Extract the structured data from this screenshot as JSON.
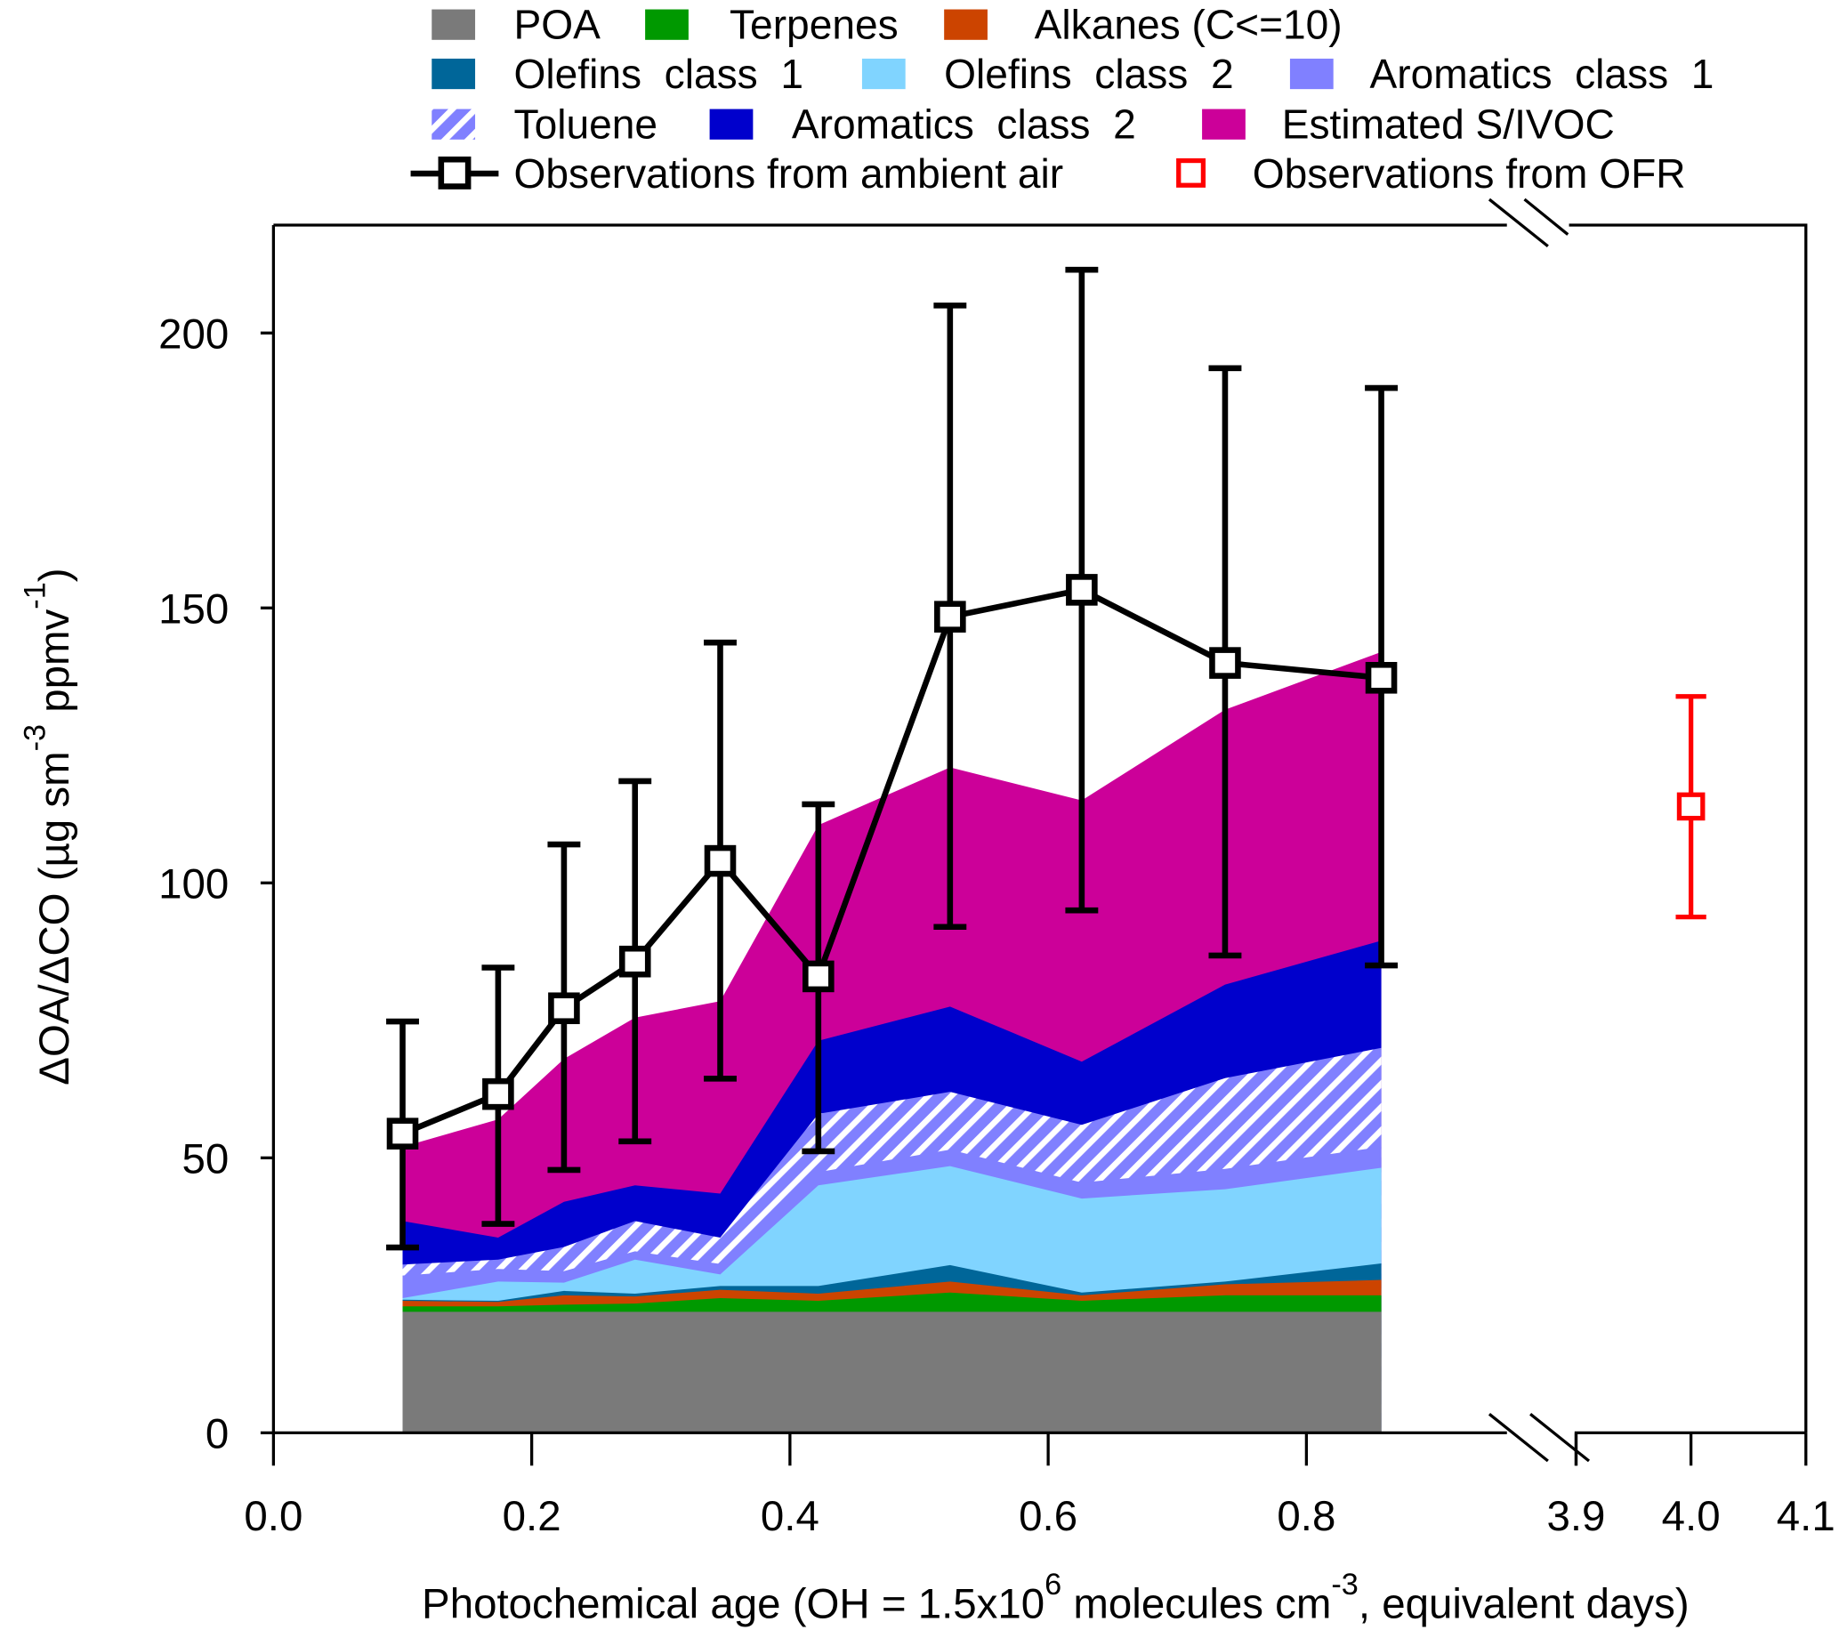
{
  "chart_data": {
    "type": "area",
    "stacked": true,
    "value_note": "series values are cumulative stack tops",
    "xlabel": {
      "pre": "Photochemical age (OH = 1.5x10",
      "sup1": "6",
      "mid": " molecules cm",
      "sup2": "-3",
      "post": ", equivalent days)"
    },
    "ylabel": {
      "pre": "ΔOA/ΔCO (µg sm",
      "sup1": "-3",
      "mid": " ppmv",
      "sup2": "-1",
      "post": ")"
    },
    "ylim": [
      0,
      220
    ],
    "xlim_left": [
      0.0,
      0.9
    ],
    "xlim_right": [
      3.9,
      4.1
    ],
    "y_ticks": [
      "0",
      "50",
      "100",
      "150",
      "200"
    ],
    "x_ticks_left": [
      "0.0",
      "0.2",
      "0.4",
      "0.6",
      "0.8"
    ],
    "x_ticks_right": [
      "3.9",
      "4.0",
      "4.1"
    ],
    "x": [
      0.1,
      0.174,
      0.225,
      0.28,
      0.346,
      0.422,
      0.524,
      0.626,
      0.737,
      0.858
    ],
    "series": [
      {
        "name": "POA",
        "color": "#7a7a7a",
        "values": [
          22,
          22,
          22,
          22,
          22,
          22,
          22,
          22,
          22,
          22
        ]
      },
      {
        "name": "Terpenes",
        "color": "#009900",
        "values": [
          23,
          23,
          23.3,
          23.5,
          24.5,
          24,
          25.5,
          24,
          25,
          25
        ]
      },
      {
        "name": "Alkanes (C<=10)",
        "color": "#cc4400",
        "values": [
          24,
          23.8,
          25,
          24.8,
          26,
          25.3,
          27.5,
          25,
          27,
          27.8
        ]
      },
      {
        "name": "Olefins  class  1",
        "color": "#006699",
        "values": [
          24.2,
          24,
          25.8,
          25.3,
          26.7,
          26.7,
          30.5,
          25.5,
          27.5,
          30.8
        ]
      },
      {
        "name": "Olefins  class  2",
        "color": "#80d4ff",
        "values": [
          24.5,
          27.5,
          27.3,
          31.5,
          28.8,
          45,
          48.5,
          42.6,
          44.3,
          48.2
        ]
      },
      {
        "name": "Aromatics  class  1",
        "color": "#8080ff",
        "values": [
          28.6,
          29.8,
          29.4,
          33,
          30.7,
          47.4,
          51.5,
          45.5,
          48,
          52
        ]
      },
      {
        "name": "Toluene",
        "color": "#8080ff",
        "hatched": true,
        "values": [
          30.6,
          31.5,
          33.8,
          38.5,
          35.5,
          58,
          62,
          56,
          64.5,
          70
        ]
      },
      {
        "name": "Aromatics  class  2",
        "color": "#0000cc",
        "values": [
          38.5,
          35.5,
          42,
          45,
          43.5,
          71.3,
          77.5,
          67.5,
          81.5,
          89.5
        ]
      },
      {
        "name": "Estimated S/IVOC",
        "color": "#cc0099",
        "values": [
          52,
          57,
          68,
          75.5,
          78.5,
          110.5,
          121,
          115,
          131.5,
          142
        ]
      }
    ],
    "observations_ambient": {
      "name": "Observations from ambient air",
      "color": "#000000",
      "y": [
        54.4,
        61.6,
        77.2,
        85.7,
        104,
        83,
        148.4,
        153.3,
        140,
        137.3
      ],
      "upper": [
        74.8,
        84.6,
        107,
        118.5,
        143.7,
        114.3,
        205,
        211.5,
        193.6,
        190
      ],
      "lower": [
        33.7,
        38,
        47.8,
        53,
        64.4,
        51.2,
        92,
        95,
        86.8,
        85
      ]
    },
    "observations_ofr": {
      "name": "Observations from OFR",
      "color": "#ff0000",
      "x": 4.0,
      "y": 113.9,
      "upper": 133.9,
      "lower": 93.8
    },
    "legend_placement": "top"
  }
}
